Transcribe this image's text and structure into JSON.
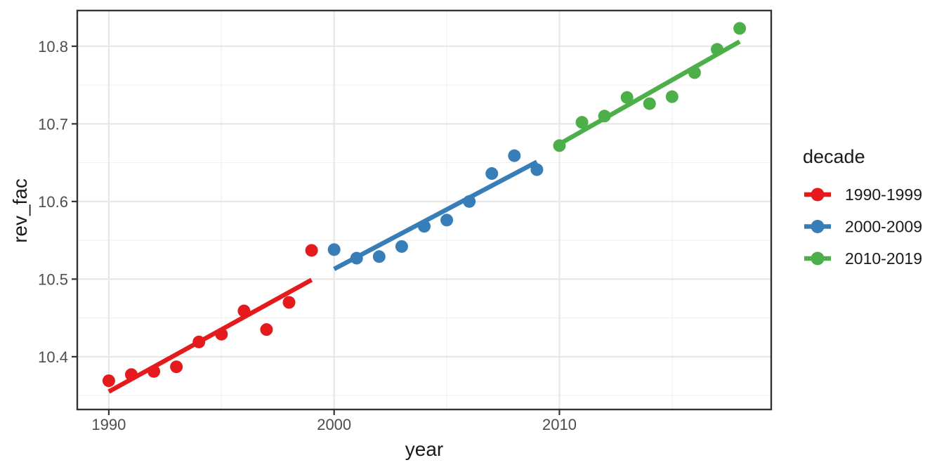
{
  "figure": {
    "background_color": "#ffffff"
  },
  "chart_data": {
    "type": "scatter",
    "title": "",
    "xlabel": "year",
    "ylabel": "rev_fac",
    "legend": {
      "title": "decade",
      "position": "right",
      "entries": [
        "1990-1999",
        "2000-2009",
        "2010-2019"
      ]
    },
    "xlim": [
      1988.6,
      2019.4
    ],
    "ylim": [
      10.332,
      10.846
    ],
    "x_major_ticks": [
      1990,
      2000,
      2010
    ],
    "x_minor_gridlines": [
      1995,
      2005,
      2015
    ],
    "y_major_ticks": [
      10.4,
      10.5,
      10.6,
      10.7,
      10.8
    ],
    "y_minor_gridlines": [
      10.35,
      10.45,
      10.55,
      10.65,
      10.75
    ],
    "grid": true,
    "series": [
      {
        "name": "1990-1999",
        "color": "#E41A1C",
        "x": [
          1990,
          1991,
          1992,
          1993,
          1994,
          1995,
          1996,
          1997,
          1998,
          1999
        ],
        "y": [
          10.369,
          10.377,
          10.381,
          10.387,
          10.419,
          10.429,
          10.459,
          10.435,
          10.47,
          10.537
        ],
        "trend": {
          "x": [
            1990,
            1999
          ],
          "y": [
            10.355,
            10.499
          ]
        }
      },
      {
        "name": "2000-2009",
        "color": "#377EB8",
        "x": [
          2000,
          2001,
          2002,
          2003,
          2004,
          2005,
          2006,
          2007,
          2008,
          2009
        ],
        "y": [
          10.538,
          10.527,
          10.529,
          10.542,
          10.568,
          10.576,
          10.6,
          10.636,
          10.659,
          10.641
        ],
        "trend": {
          "x": [
            2000,
            2009
          ],
          "y": [
            10.513,
            10.651
          ]
        }
      },
      {
        "name": "2010-2019",
        "color": "#4DAF4A",
        "x": [
          2010,
          2011,
          2012,
          2013,
          2014,
          2015,
          2016,
          2017,
          2018
        ],
        "y": [
          10.672,
          10.702,
          10.71,
          10.734,
          10.726,
          10.735,
          10.766,
          10.796,
          10.823
        ],
        "trend": {
          "x": [
            2010,
            2018
          ],
          "y": [
            10.674,
            10.806
          ]
        }
      }
    ],
    "style": {
      "point_radius": 9,
      "trend_line_width": 6.5,
      "grid_major_color": "#e7e7e7",
      "grid_minor_color": "#f1f1f1",
      "panel_border_color": "#333333",
      "tick_color": "#333333",
      "tick_label_color": "#4d4d4d",
      "axis_title_color": "#1a1a1a"
    }
  }
}
